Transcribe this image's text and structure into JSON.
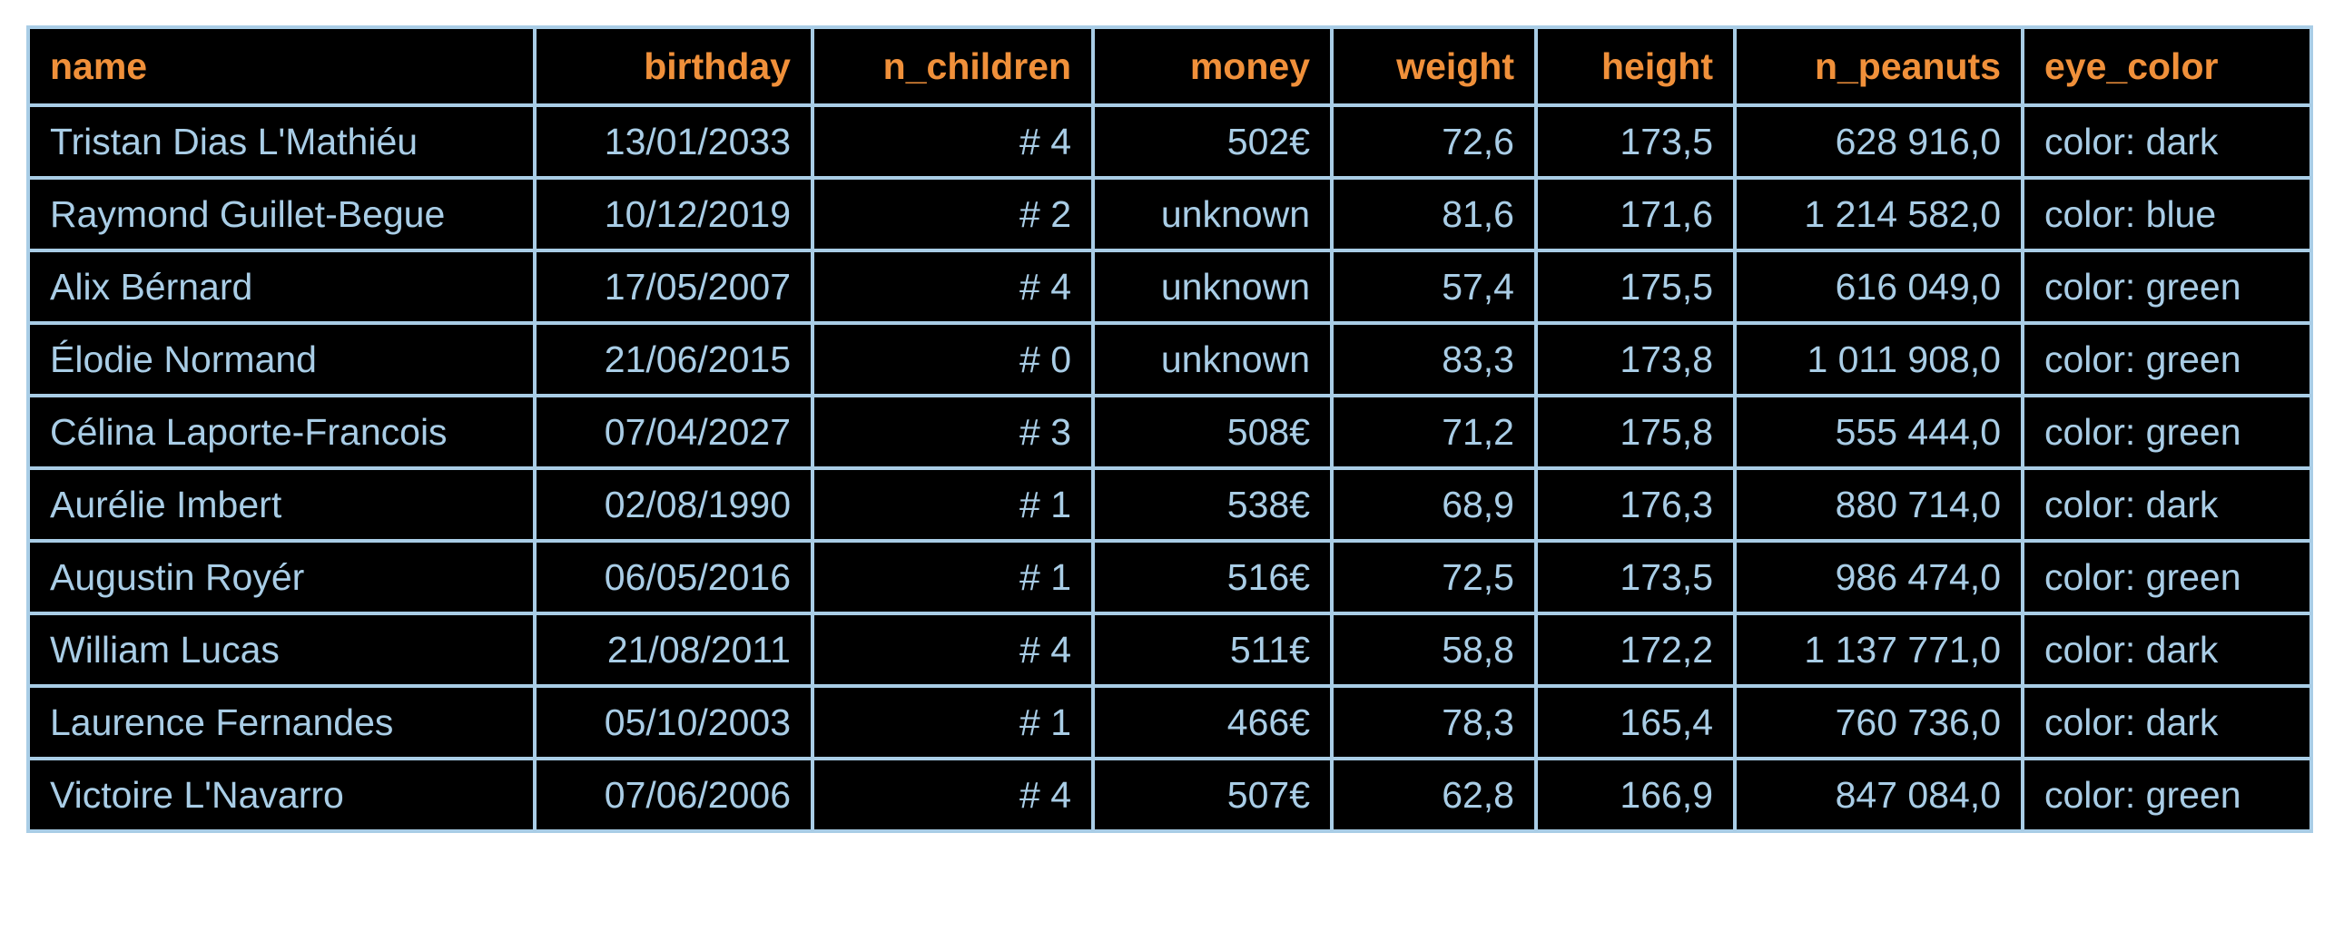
{
  "colors": {
    "background": "#000000",
    "header_text": "#f0903a",
    "cell_text": "#a9cde6",
    "border": "#a9cde6"
  },
  "chart_data": {
    "type": "table",
    "columns": [
      {
        "key": "name",
        "label": "name",
        "align": "left"
      },
      {
        "key": "birthday",
        "label": "birthday",
        "align": "right"
      },
      {
        "key": "n_children",
        "label": "n_children",
        "align": "right"
      },
      {
        "key": "money",
        "label": "money",
        "align": "right"
      },
      {
        "key": "weight",
        "label": "weight",
        "align": "right"
      },
      {
        "key": "height",
        "label": "height",
        "align": "right"
      },
      {
        "key": "n_peanuts",
        "label": "n_peanuts",
        "align": "right"
      },
      {
        "key": "eye_color",
        "label": "eye_color",
        "align": "left"
      }
    ],
    "rows": [
      [
        "Tristan Dias L'Mathiéu",
        "13/01/2033",
        "# 4",
        "502€",
        "72,6",
        "173,5",
        "628 916,0",
        "color: dark"
      ],
      [
        "Raymond Guillet-Begue",
        "10/12/2019",
        "# 2",
        "unknown",
        "81,6",
        "171,6",
        "1 214 582,0",
        "color: blue"
      ],
      [
        "Alix Bérnard",
        "17/05/2007",
        "# 4",
        "unknown",
        "57,4",
        "175,5",
        "616 049,0",
        "color: green"
      ],
      [
        "Élodie Normand",
        "21/06/2015",
        "# 0",
        "unknown",
        "83,3",
        "173,8",
        "1 011 908,0",
        "color: green"
      ],
      [
        "Célina Laporte-Francois",
        "07/04/2027",
        "# 3",
        "508€",
        "71,2",
        "175,8",
        "555 444,0",
        "color: green"
      ],
      [
        "Aurélie Imbert",
        "02/08/1990",
        "# 1",
        "538€",
        "68,9",
        "176,3",
        "880 714,0",
        "color: dark"
      ],
      [
        "Augustin Royér",
        "06/05/2016",
        "# 1",
        "516€",
        "72,5",
        "173,5",
        "986 474,0",
        "color: green"
      ],
      [
        "William Lucas",
        "21/08/2011",
        "# 4",
        "511€",
        "58,8",
        "172,2",
        "1 137 771,0",
        "color: dark"
      ],
      [
        "Laurence Fernandes",
        "05/10/2003",
        "# 1",
        "466€",
        "78,3",
        "165,4",
        "760 736,0",
        "color: dark"
      ],
      [
        "Victoire L'Navarro",
        "07/06/2006",
        "# 4",
        "507€",
        "62,8",
        "166,9",
        "847 084,0",
        "color: green"
      ]
    ]
  }
}
